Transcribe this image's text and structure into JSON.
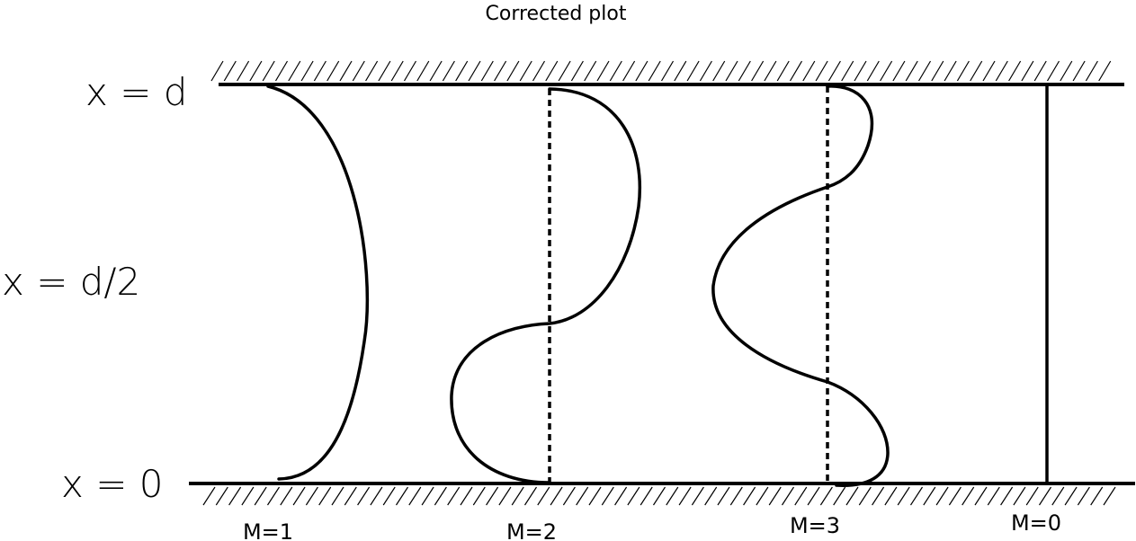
{
  "title": "Corrected plot",
  "y_labels": {
    "top": "x = d",
    "middle": "x = d/2",
    "bottom": "x = 0"
  },
  "modes": [
    {
      "label": "M=1"
    },
    {
      "label": "M=2"
    },
    {
      "label": "M=3"
    },
    {
      "label": "M=0"
    }
  ]
}
